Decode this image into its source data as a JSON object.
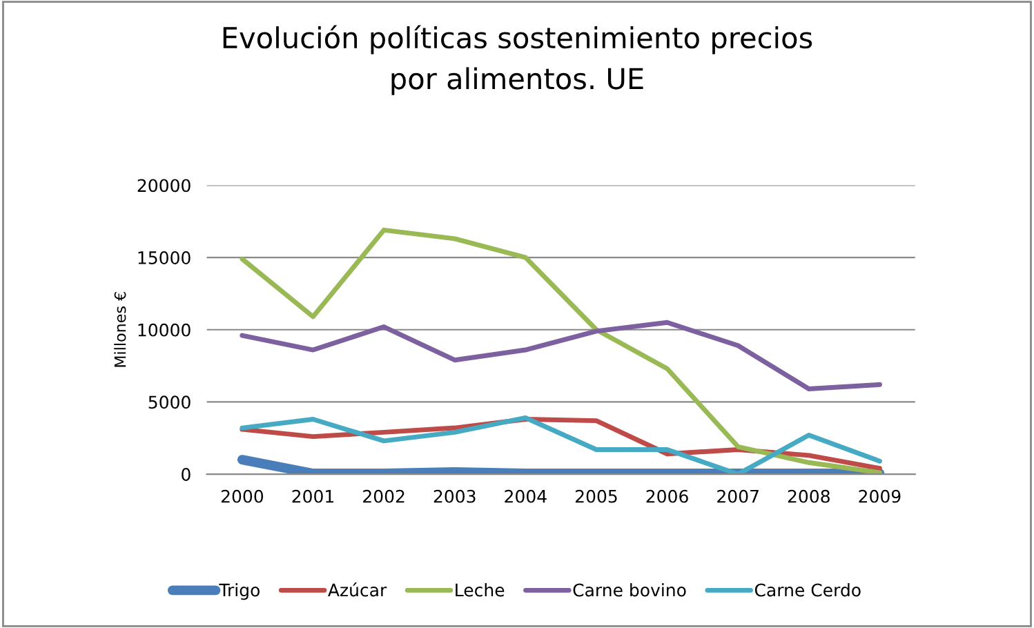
{
  "chart_data": {
    "type": "line",
    "title": "Evolución políticas sostenimiento precios\npor alimentos. UE",
    "ylabel": "Millones €",
    "categories": [
      "2000",
      "2001",
      "2002",
      "2003",
      "2004",
      "2005",
      "2006",
      "2007",
      "2008",
      "2009"
    ],
    "series": [
      {
        "name": "Trigo",
        "color": "#4a7ebb",
        "values": [
          1000,
          50,
          50,
          150,
          50,
          50,
          50,
          50,
          50,
          50
        ]
      },
      {
        "name": "Azúcar",
        "color": "#be4b48",
        "values": [
          3100,
          2600,
          2900,
          3200,
          3800,
          3700,
          1400,
          1700,
          1300,
          400
        ]
      },
      {
        "name": "Leche",
        "color": "#98b954",
        "values": [
          14900,
          10900,
          16900,
          16300,
          15000,
          10000,
          7300,
          1900,
          800,
          100
        ]
      },
      {
        "name": "Carne bovino",
        "color": "#7d60a0",
        "values": [
          9600,
          8600,
          10200,
          7900,
          8600,
          9900,
          10500,
          8900,
          5900,
          6200
        ]
      },
      {
        "name": "Carne Cerdo",
        "color": "#46aac5",
        "values": [
          3200,
          3800,
          2300,
          2900,
          3900,
          1700,
          1700,
          0,
          2700,
          900
        ]
      }
    ],
    "ylim": [
      0,
      20000
    ],
    "yticks": [
      0,
      5000,
      10000,
      15000,
      20000
    ],
    "grid": "y",
    "legend": "bottom",
    "marker": "none",
    "line_style": "solid"
  }
}
